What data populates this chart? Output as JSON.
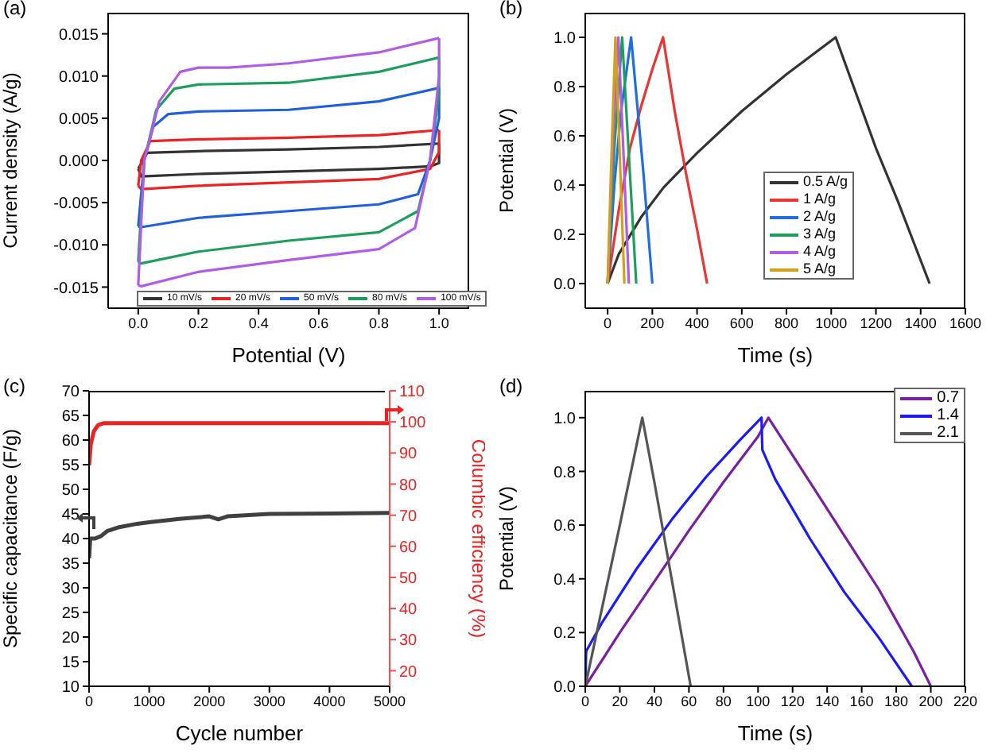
{
  "chart_data": [
    {
      "type": "line",
      "title": "(a)",
      "xlabel": "Potential (V)",
      "ylabel": "Current density (A/g)",
      "xlim": [
        -0.1,
        1.1
      ],
      "xticks": [
        {
          "value": 0,
          "label": "0.0"
        },
        {
          "value": 0.2,
          "label": "0.2"
        },
        {
          "value": 0.4,
          "label": "0.4"
        },
        {
          "value": 0.6,
          "label": "0.6"
        },
        {
          "value": 0.8,
          "label": "0.8"
        },
        {
          "value": 1,
          "label": "1.0"
        }
      ],
      "ylim": [
        -0.0175,
        0.0175
      ],
      "yticks": [
        {
          "value": -0.015,
          "label": "-0.015"
        },
        {
          "value": -0.01,
          "label": "-0.010"
        },
        {
          "value": -0.005,
          "label": "-0.005"
        },
        {
          "value": 0,
          "label": "0.000"
        },
        {
          "value": 0.005,
          "label": "0.005"
        },
        {
          "value": 0.01,
          "label": "0.010"
        },
        {
          "value": 0.015,
          "label": "0.015"
        }
      ],
      "legend": "bottom",
      "series": [
        {
          "name": "10 mV/s",
          "color": "#333333",
          "x": [
            0,
            0.03,
            0.2,
            0.5,
            0.8,
            1
          ],
          "values": [
            -0.001,
            0.0009,
            0.0011,
            0.0013,
            0.0016,
            0.002
          ]
        },
        {
          "color": "#333333",
          "x": [
            0,
            0.01,
            0.2,
            0.5,
            0.8,
            0.97,
            1,
            1
          ],
          "values": [
            -0.001,
            -0.0019,
            -0.0016,
            -0.0013,
            -0.001,
            -0.0007,
            -0.0003,
            0.002
          ]
        },
        {
          "name": "20 mV/s",
          "color": "#ee2222",
          "x": [
            0,
            0.01,
            0.04,
            0.2,
            0.5,
            0.8,
            1
          ],
          "values": [
            -0.003,
            0,
            0.0023,
            0.0025,
            0.0027,
            0.003,
            0.0036
          ]
        },
        {
          "color": "#ee2222",
          "x": [
            0,
            0.01,
            0.2,
            0.5,
            0.8,
            0.97,
            1,
            1
          ],
          "values": [
            -0.003,
            -0.0034,
            -0.003,
            -0.0026,
            -0.0022,
            -0.001,
            0.001,
            0.0036
          ]
        },
        {
          "name": "50 mV/s",
          "color": "#1f5fe0",
          "x": [
            0,
            0.02,
            0.05,
            0.1,
            0.2,
            0.5,
            0.8,
            1
          ],
          "values": [
            -0.0078,
            0,
            0.004,
            0.0055,
            0.0058,
            0.006,
            0.007,
            0.0086
          ]
        },
        {
          "color": "#1f5fe0",
          "x": [
            0,
            0.01,
            0.2,
            0.5,
            0.8,
            0.93,
            0.97,
            1,
            1
          ],
          "values": [
            -0.0078,
            -0.0079,
            -0.0068,
            -0.006,
            -0.0052,
            -0.004,
            0,
            0.005,
            0.0086
          ]
        },
        {
          "name": "80 mV/s",
          "color": "#1aa05a",
          "x": [
            0,
            0.02,
            0.06,
            0.12,
            0.2,
            0.5,
            0.8,
            1
          ],
          "values": [
            -0.012,
            0,
            0.006,
            0.0085,
            0.009,
            0.0092,
            0.0105,
            0.0122
          ]
        },
        {
          "color": "#1aa05a",
          "x": [
            0,
            0.01,
            0.2,
            0.5,
            0.8,
            0.93,
            0.97,
            1,
            1
          ],
          "values": [
            -0.012,
            -0.0122,
            -0.0108,
            -0.0095,
            -0.0085,
            -0.006,
            0,
            0.008,
            0.0122
          ]
        },
        {
          "name": "100 mV/s",
          "color": "#b05ce8",
          "x": [
            0,
            0.02,
            0.07,
            0.14,
            0.2,
            0.3,
            0.5,
            0.8,
            1
          ],
          "values": [
            -0.0148,
            0,
            0.007,
            0.0105,
            0.011,
            0.011,
            0.0115,
            0.0128,
            0.0145
          ]
        },
        {
          "color": "#b05ce8",
          "x": [
            0,
            0.01,
            0.2,
            0.5,
            0.8,
            0.92,
            0.97,
            1,
            1
          ],
          "values": [
            -0.0148,
            -0.0149,
            -0.0132,
            -0.0118,
            -0.0105,
            -0.008,
            0,
            0.01,
            0.0145
          ]
        }
      ]
    },
    {
      "type": "line",
      "title": "(b)",
      "xlabel": "Time (s)",
      "ylabel": "Potential (V)",
      "xlim": [
        -100,
        1600
      ],
      "xticks": [
        0,
        200,
        400,
        600,
        800,
        1000,
        1200,
        1400,
        1600
      ],
      "ylim": [
        -0.1,
        1.1
      ],
      "yticks": [
        {
          "value": 0,
          "label": "0.0"
        },
        {
          "value": 0.2,
          "label": "0.2"
        },
        {
          "value": 0.4,
          "label": "0.4"
        },
        {
          "value": 0.6,
          "label": "0.6"
        },
        {
          "value": 0.8,
          "label": "0.8"
        },
        {
          "value": 1,
          "label": "1.0"
        }
      ],
      "legend": "right",
      "series": [
        {
          "name": "0.5 A/g",
          "color": "#333333",
          "x": [
            0,
            50,
            150,
            250,
            400,
            600,
            800,
            1020,
            1100,
            1200,
            1300,
            1440
          ],
          "values": [
            0,
            0.12,
            0.27,
            0.39,
            0.53,
            0.7,
            0.85,
            1,
            0.8,
            0.55,
            0.33,
            0
          ]
        },
        {
          "name": "1 A/g",
          "color": "#ee3333",
          "x": [
            0,
            50,
            100,
            150,
            200,
            248,
            300,
            350,
            400,
            445
          ],
          "values": [
            0,
            0.3,
            0.55,
            0.72,
            0.87,
            1,
            0.7,
            0.45,
            0.22,
            0
          ]
        },
        {
          "name": "2 A/g",
          "color": "#1f6fe0",
          "x": [
            0,
            30,
            60,
            105,
            130,
            160,
            200
          ],
          "values": [
            0,
            0.4,
            0.7,
            1,
            0.75,
            0.45,
            0
          ]
        },
        {
          "name": "3 A/g",
          "color": "#1aa05a",
          "x": [
            0,
            30,
            65,
            90,
            128
          ],
          "values": [
            0,
            0.55,
            1,
            0.6,
            0
          ]
        },
        {
          "name": "4 A/g",
          "color": "#b05ce8",
          "x": [
            0,
            25,
            48,
            70,
            95
          ],
          "values": [
            0,
            0.6,
            1,
            0.55,
            0
          ]
        },
        {
          "name": "5 A/g",
          "color": "#d4a017",
          "x": [
            0,
            20,
            35,
            55,
            75
          ],
          "values": [
            0,
            0.6,
            1,
            0.5,
            0
          ]
        }
      ]
    },
    {
      "type": "line",
      "title": "(c)",
      "xlabel": "Cycle number",
      "ylabel": "Specific capacitance (F/g)",
      "y2label": "Columbic efficiency (%)",
      "xlim": [
        0,
        5000
      ],
      "xticks": [
        0,
        1000,
        2000,
        3000,
        4000,
        5000
      ],
      "ylim": [
        10,
        70
      ],
      "yticks": [
        10,
        15,
        20,
        25,
        30,
        35,
        40,
        45,
        50,
        55,
        60,
        65,
        70
      ],
      "y2lim": [
        15,
        110
      ],
      "y2ticks": [
        20,
        30,
        40,
        50,
        60,
        70,
        80,
        90,
        100,
        110
      ],
      "series": [
        {
          "color": "#404040",
          "x": [
            0,
            20,
            100,
            200,
            300,
            500,
            800,
            1000,
            1500,
            2000,
            2150,
            2300,
            3000,
            4000,
            5000
          ],
          "values": [
            36,
            40,
            40,
            40.5,
            41.5,
            42.3,
            43,
            43.3,
            44,
            44.5,
            43.9,
            44.5,
            45,
            45.1,
            45.2
          ]
        },
        {
          "color": "#ee2222",
          "axis": "y2",
          "x": [
            0,
            30,
            80,
            150,
            250,
            5000
          ],
          "values": [
            86,
            93,
            97,
            99,
            99.6,
            99.6
          ]
        }
      ]
    },
    {
      "type": "line",
      "title": "(d)",
      "xlabel": "Time (s)",
      "ylabel": "Potential (V)",
      "xlim": [
        0,
        220
      ],
      "xticks": [
        0,
        20,
        40,
        60,
        80,
        100,
        120,
        140,
        160,
        180,
        200,
        220
      ],
      "ylim": [
        0,
        1.1
      ],
      "yticks": [
        {
          "value": 0,
          "label": "0.0"
        },
        {
          "value": 0.2,
          "label": "0.2"
        },
        {
          "value": 0.4,
          "label": "0.4"
        },
        {
          "value": 0.6,
          "label": "0.6"
        },
        {
          "value": 0.8,
          "label": "0.8"
        },
        {
          "value": 1,
          "label": "1.0"
        }
      ],
      "legend": "top right",
      "series": [
        {
          "name": "0.7",
          "color": "#7b1fa2",
          "x": [
            0,
            20,
            40,
            60,
            80,
            100,
            106,
            110,
            130,
            150,
            170,
            190,
            200
          ],
          "values": [
            0,
            0.2,
            0.39,
            0.58,
            0.76,
            0.93,
            1,
            0.96,
            0.76,
            0.56,
            0.36,
            0.13,
            0
          ]
        },
        {
          "name": "1.4",
          "color": "#1a1aff",
          "x": [
            0,
            0.5,
            10,
            30,
            50,
            70,
            90,
            102,
            102.5,
            110,
            130,
            150,
            170,
            189
          ],
          "values": [
            0,
            0.13,
            0.24,
            0.44,
            0.62,
            0.78,
            0.92,
            1,
            0.88,
            0.77,
            0.55,
            0.35,
            0.18,
            0
          ]
        },
        {
          "name": "2.1",
          "color": "#555555",
          "x": [
            0,
            10,
            20,
            33,
            40,
            50,
            61
          ],
          "values": [
            0,
            0.3,
            0.6,
            1,
            0.76,
            0.4,
            0
          ]
        }
      ]
    }
  ]
}
